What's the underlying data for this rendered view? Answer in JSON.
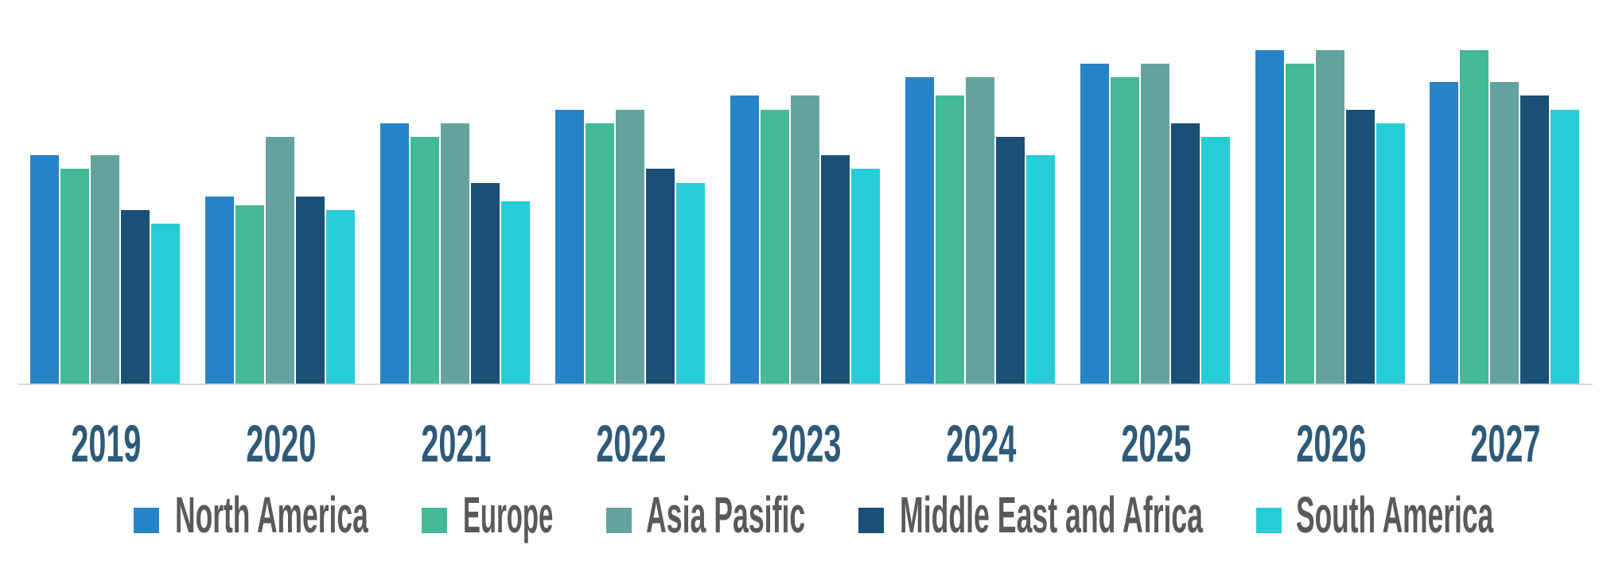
{
  "chart_data": {
    "type": "bar",
    "title": "",
    "xlabel": "",
    "ylabel": "",
    "grid": false,
    "legend_position": "bottom",
    "ylim": [
      0,
      440
    ],
    "value_note": "No y-axis or data labels shown; values are relative bar heights estimated in pixels from baseline",
    "categories": [
      "2019",
      "2020",
      "2021",
      "2022",
      "2023",
      "2024",
      "2025",
      "2026",
      "2027"
    ],
    "series": [
      {
        "name": "North America",
        "color": "#2783c7",
        "values": [
          287,
          235,
          327,
          344,
          362,
          385,
          402,
          419,
          379
        ]
      },
      {
        "name": "Europe",
        "color": "#43b997",
        "values": [
          270,
          224,
          310,
          327,
          344,
          362,
          385,
          402,
          419
        ]
      },
      {
        "name": "Asia Pasific",
        "color": "#64a29f",
        "values": [
          287,
          310,
          327,
          344,
          362,
          385,
          402,
          419,
          379
        ]
      },
      {
        "name": "Middle East and Africa",
        "color": "#1a4f76",
        "values": [
          218,
          235,
          252,
          270,
          287,
          310,
          327,
          344,
          362
        ]
      },
      {
        "name": "South America",
        "color": "#27ccd7",
        "values": [
          201,
          218,
          229,
          252,
          270,
          287,
          310,
          327,
          344
        ]
      }
    ]
  },
  "legend": {
    "items": [
      {
        "label": "North America",
        "color": "#2783c7"
      },
      {
        "label": "Europe",
        "color": "#43b997"
      },
      {
        "label": "Asia Pasific",
        "color": "#64a29f"
      },
      {
        "label": "Middle East and Africa",
        "color": "#1a4f76"
      },
      {
        "label": "South America",
        "color": "#27ccd7"
      }
    ]
  },
  "colors": {
    "axis_line": "#d9d9d9",
    "year_label": "#2e5a78",
    "legend_text": "#595959"
  }
}
